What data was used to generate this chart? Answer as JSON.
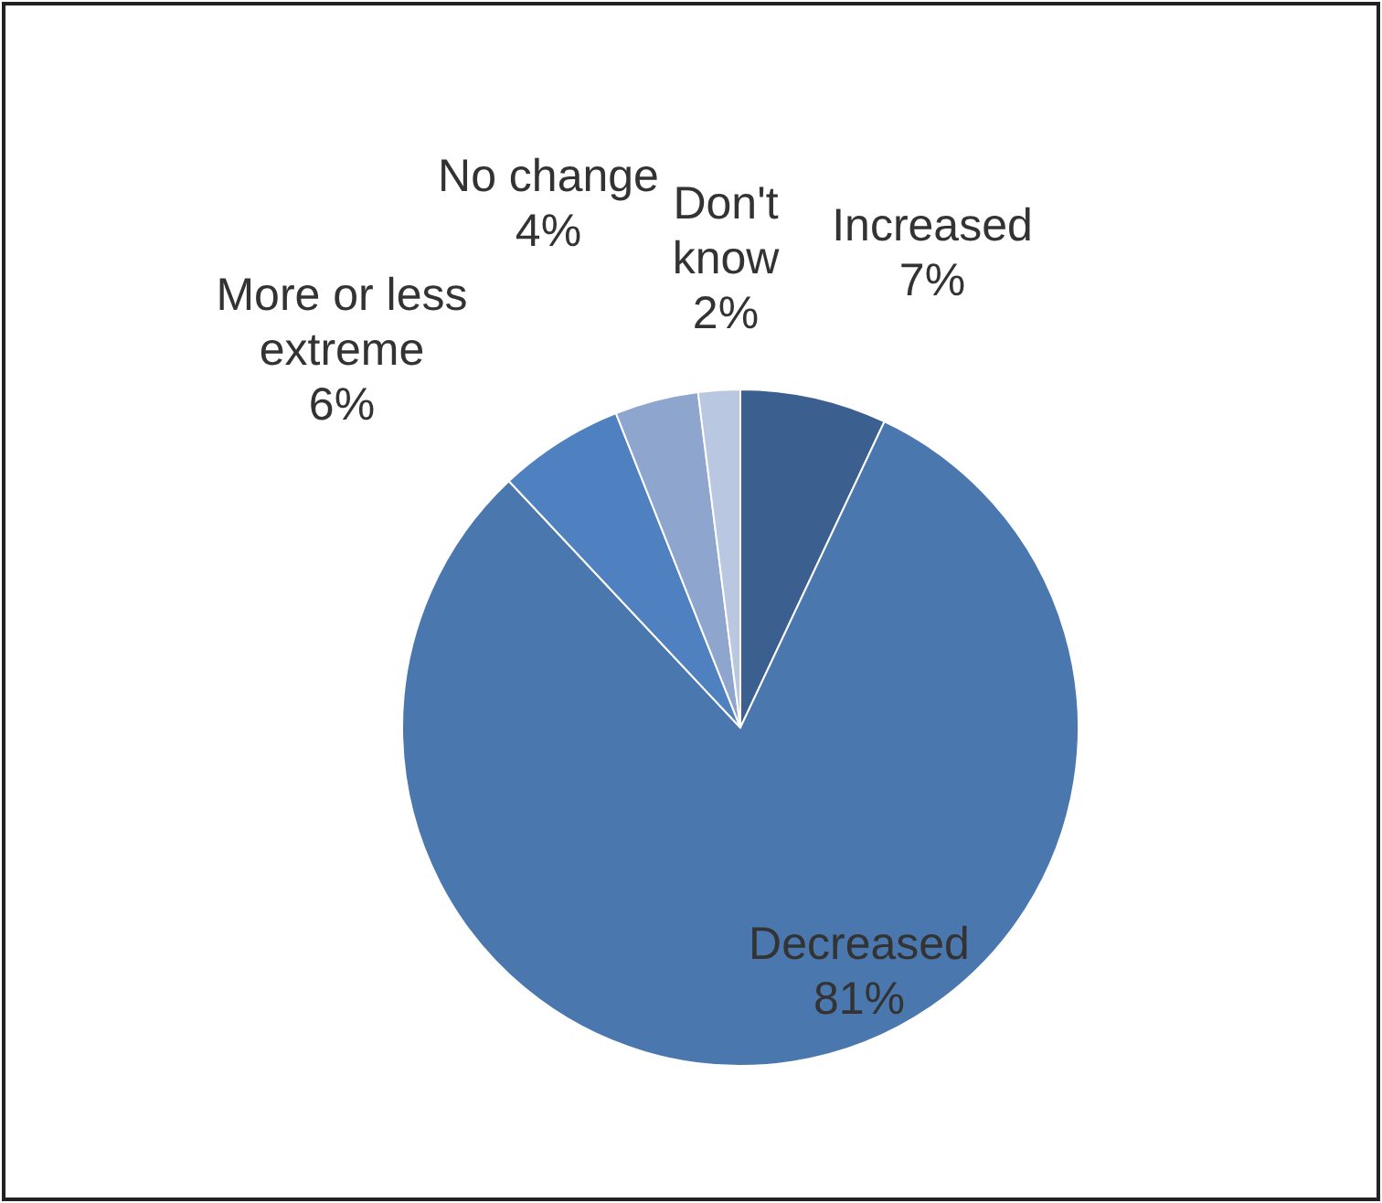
{
  "chart_data": {
    "type": "pie",
    "categories": [
      "Increased",
      "Decreased",
      "More or less extreme",
      "No change",
      "Don't know"
    ],
    "values": [
      7,
      81,
      6,
      4,
      2
    ],
    "colors": [
      "#3b6090",
      "#4a77ae",
      "#4f80bf",
      "#8ea6cd",
      "#b9c7e1"
    ],
    "value_labels": [
      "7%",
      "81%",
      "6%",
      "4%",
      "2%"
    ]
  }
}
